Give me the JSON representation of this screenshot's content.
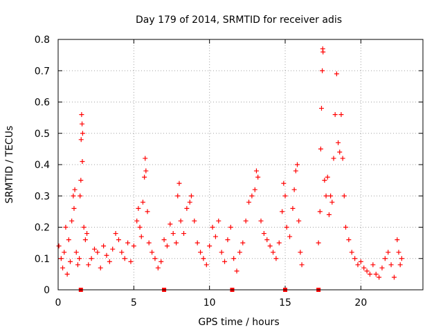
{
  "chart_data": {
    "type": "scatter",
    "title": "Day 179 of 2014, SRMTID for receiver adis",
    "xlabel": "GPS time / hours",
    "ylabel": "SRMTID / TECUs",
    "xlim": [
      0,
      24.1
    ],
    "ylim": [
      0,
      0.8
    ],
    "xticks": [
      0,
      5,
      10,
      15,
      20
    ],
    "yticks": [
      0,
      0.1,
      0.2,
      0.3,
      0.4,
      0.5,
      0.6,
      0.7,
      0.8
    ],
    "xtick_labels": [
      "0",
      "5",
      "10",
      "15",
      "20"
    ],
    "ytick_labels": [
      "0",
      "0.1",
      "0.2",
      "0.3",
      "0.4",
      "0.5",
      "0.6",
      "0.7",
      "0.8"
    ],
    "marker": "plus",
    "color": "#ff0000",
    "grid": true,
    "baseline_markers": [
      1.5,
      7.0,
      11.5,
      15.0,
      17.2
    ],
    "series": [
      {
        "name": "SRMTID",
        "points": [
          [
            0.05,
            0.14
          ],
          [
            0.2,
            0.1
          ],
          [
            0.3,
            0.07
          ],
          [
            0.4,
            0.12
          ],
          [
            0.5,
            0.2
          ],
          [
            0.6,
            0.05
          ],
          [
            0.7,
            0.16
          ],
          [
            0.8,
            0.09
          ],
          [
            0.9,
            0.22
          ],
          [
            1.0,
            0.3
          ],
          [
            1.05,
            0.26
          ],
          [
            1.1,
            0.32
          ],
          [
            1.2,
            0.12
          ],
          [
            1.3,
            0.08
          ],
          [
            1.4,
            0.1
          ],
          [
            1.45,
            0.3
          ],
          [
            1.5,
            0.35
          ],
          [
            1.52,
            0.48
          ],
          [
            1.55,
            0.56
          ],
          [
            1.58,
            0.53
          ],
          [
            1.6,
            0.41
          ],
          [
            1.62,
            0.5
          ],
          [
            1.7,
            0.2
          ],
          [
            1.8,
            0.16
          ],
          [
            1.9,
            0.18
          ],
          [
            2.0,
            0.08
          ],
          [
            2.2,
            0.1
          ],
          [
            2.4,
            0.13
          ],
          [
            2.6,
            0.12
          ],
          [
            2.8,
            0.07
          ],
          [
            3.0,
            0.14
          ],
          [
            3.2,
            0.11
          ],
          [
            3.4,
            0.09
          ],
          [
            3.6,
            0.13
          ],
          [
            3.8,
            0.18
          ],
          [
            4.0,
            0.16
          ],
          [
            4.2,
            0.12
          ],
          [
            4.4,
            0.1
          ],
          [
            4.6,
            0.15
          ],
          [
            4.8,
            0.09
          ],
          [
            5.0,
            0.14
          ],
          [
            5.2,
            0.22
          ],
          [
            5.3,
            0.26
          ],
          [
            5.4,
            0.2
          ],
          [
            5.5,
            0.17
          ],
          [
            5.6,
            0.28
          ],
          [
            5.7,
            0.36
          ],
          [
            5.75,
            0.42
          ],
          [
            5.8,
            0.38
          ],
          [
            5.9,
            0.25
          ],
          [
            6.0,
            0.15
          ],
          [
            6.2,
            0.12
          ],
          [
            6.4,
            0.1
          ],
          [
            6.6,
            0.07
          ],
          [
            6.8,
            0.09
          ],
          [
            7.0,
            0.16
          ],
          [
            7.2,
            0.14
          ],
          [
            7.4,
            0.21
          ],
          [
            7.6,
            0.18
          ],
          [
            7.8,
            0.15
          ],
          [
            7.9,
            0.3
          ],
          [
            8.0,
            0.34
          ],
          [
            8.1,
            0.22
          ],
          [
            8.3,
            0.18
          ],
          [
            8.5,
            0.26
          ],
          [
            8.7,
            0.28
          ],
          [
            8.8,
            0.3
          ],
          [
            9.0,
            0.22
          ],
          [
            9.2,
            0.15
          ],
          [
            9.4,
            0.12
          ],
          [
            9.6,
            0.1
          ],
          [
            9.8,
            0.08
          ],
          [
            10.0,
            0.14
          ],
          [
            10.2,
            0.2
          ],
          [
            10.4,
            0.17
          ],
          [
            10.6,
            0.22
          ],
          [
            10.8,
            0.12
          ],
          [
            11.0,
            0.09
          ],
          [
            11.2,
            0.16
          ],
          [
            11.4,
            0.2
          ],
          [
            11.6,
            0.1
          ],
          [
            11.8,
            0.06
          ],
          [
            12.0,
            0.12
          ],
          [
            12.2,
            0.15
          ],
          [
            12.4,
            0.22
          ],
          [
            12.6,
            0.28
          ],
          [
            12.8,
            0.3
          ],
          [
            13.0,
            0.32
          ],
          [
            13.1,
            0.38
          ],
          [
            13.2,
            0.36
          ],
          [
            13.4,
            0.22
          ],
          [
            13.6,
            0.18
          ],
          [
            13.8,
            0.16
          ],
          [
            14.0,
            0.14
          ],
          [
            14.2,
            0.12
          ],
          [
            14.4,
            0.1
          ],
          [
            14.6,
            0.15
          ],
          [
            14.8,
            0.25
          ],
          [
            14.9,
            0.34
          ],
          [
            15.0,
            0.3
          ],
          [
            15.1,
            0.2
          ],
          [
            15.3,
            0.17
          ],
          [
            15.5,
            0.26
          ],
          [
            15.6,
            0.32
          ],
          [
            15.7,
            0.38
          ],
          [
            15.8,
            0.4
          ],
          [
            15.9,
            0.22
          ],
          [
            16.0,
            0.12
          ],
          [
            16.1,
            0.08
          ],
          [
            17.2,
            0.15
          ],
          [
            17.3,
            0.25
          ],
          [
            17.35,
            0.45
          ],
          [
            17.4,
            0.58
          ],
          [
            17.45,
            0.7
          ],
          [
            17.48,
            0.77
          ],
          [
            17.5,
            0.76
          ],
          [
            17.6,
            0.35
          ],
          [
            17.7,
            0.3
          ],
          [
            17.8,
            0.36
          ],
          [
            17.9,
            0.24
          ],
          [
            18.0,
            0.3
          ],
          [
            18.1,
            0.28
          ],
          [
            18.2,
            0.42
          ],
          [
            18.3,
            0.56
          ],
          [
            18.4,
            0.69
          ],
          [
            18.5,
            0.47
          ],
          [
            18.6,
            0.44
          ],
          [
            18.7,
            0.56
          ],
          [
            18.8,
            0.42
          ],
          [
            18.9,
            0.3
          ],
          [
            19.0,
            0.2
          ],
          [
            19.2,
            0.16
          ],
          [
            19.4,
            0.12
          ],
          [
            19.6,
            0.1
          ],
          [
            19.8,
            0.08
          ],
          [
            20.0,
            0.09
          ],
          [
            20.2,
            0.07
          ],
          [
            20.4,
            0.06
          ],
          [
            20.6,
            0.05
          ],
          [
            20.8,
            0.08
          ],
          [
            21.0,
            0.05
          ],
          [
            21.2,
            0.04
          ],
          [
            21.4,
            0.07
          ],
          [
            21.6,
            0.1
          ],
          [
            21.8,
            0.12
          ],
          [
            22.0,
            0.08
          ],
          [
            22.2,
            0.04
          ],
          [
            22.4,
            0.16
          ],
          [
            22.5,
            0.12
          ],
          [
            22.6,
            0.08
          ],
          [
            22.7,
            0.1
          ]
        ]
      }
    ]
  }
}
